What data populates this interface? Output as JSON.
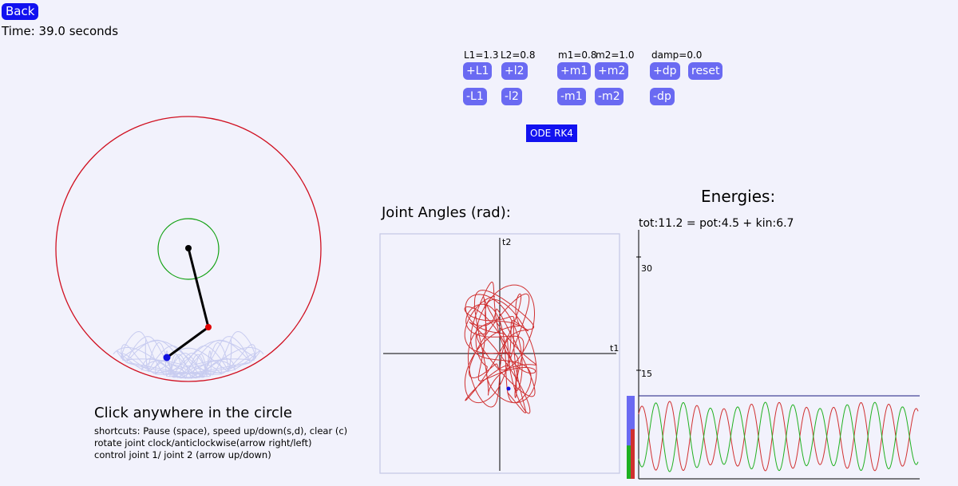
{
  "header": {
    "back_label": "Back",
    "time_text": "Time: 39.0 seconds"
  },
  "params": {
    "l1_label": "L1=1.3",
    "l2_label": "L2=0.8",
    "m1_label": "m1=0.8",
    "m2_label": "m2=1.0",
    "damp_label": "damp=0.0"
  },
  "controls": {
    "plus_l1": "+L1",
    "plus_l2": "+l2",
    "plus_m1": "+m1",
    "plus_m2": "+m2",
    "plus_dp": "+dp",
    "reset": "reset",
    "minus_l1": "-L1",
    "minus_l2": "-l2",
    "minus_m1": "-m1",
    "minus_m2": "-m2",
    "minus_dp": "-dp",
    "ode": "ODE RK4"
  },
  "angles_panel": {
    "title": "Joint Angles (rad):",
    "x_axis_label": "t1",
    "y_axis_label": "t2"
  },
  "energy_panel": {
    "title": "Energies:",
    "values_text": "tot:11.2 = pot:4.5     + kin:6.7",
    "tick_30": "30",
    "tick_15": "15",
    "total": 11.2,
    "potential": 4.5,
    "kinetic": 6.7
  },
  "instructions": {
    "main": "Click anywhere in the circle",
    "line1": "shortcuts: Pause (space), speed up/down(s,d), clear (c)",
    "line2": "rotate joint clock/anticlockwise(arrow right/left)",
    "line3": "control joint 1/ joint 2 (arrow up/down)"
  },
  "colors": {
    "accent": "#1212f0",
    "button": "#6a6af2",
    "boundary": "#d01020",
    "pivot_circle": "#10a010",
    "trail": "#c8ccf0",
    "potential": "#d03030",
    "kinetic": "#20b020",
    "total_bar": "#6a6af2"
  }
}
